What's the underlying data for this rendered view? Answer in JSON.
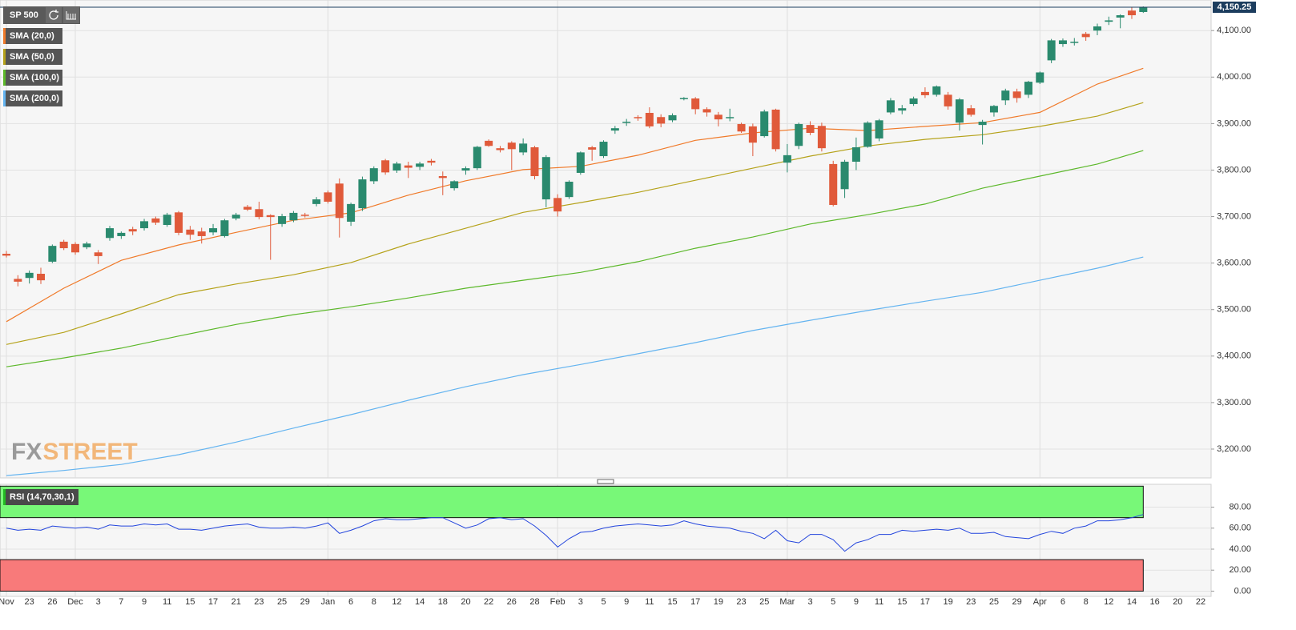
{
  "chart_data": [
    {
      "type": "candlestick",
      "title": "SP 500",
      "legend": "top-left",
      "grid": true,
      "up_color": "#2a8a6e",
      "down_color": "#e05a3a",
      "categories": [
        "Nov",
        null,
        "23",
        null,
        "26",
        null,
        "Dec",
        null,
        "3",
        null,
        "7",
        null,
        "9",
        null,
        "11",
        null,
        "15",
        null,
        "17",
        null,
        "21",
        null,
        "23",
        null,
        "25",
        null,
        "29",
        null,
        "Jan",
        null,
        "6",
        null,
        "8",
        null,
        "12",
        null,
        "14",
        null,
        "18",
        null,
        "20",
        null,
        "22",
        null,
        "26",
        null,
        "28",
        null,
        "Feb",
        null,
        "3",
        null,
        "5",
        null,
        "9",
        null,
        "11",
        null,
        "15",
        null,
        "17",
        null,
        "19",
        null,
        "23",
        null,
        "25",
        null,
        "Mar",
        null,
        "3",
        null,
        "5",
        null,
        "9",
        null,
        "11",
        null,
        "15",
        null,
        "17",
        null,
        "19",
        null,
        "23",
        null,
        "25",
        null,
        "29",
        null,
        "Apr",
        null,
        "6",
        null,
        "8",
        null,
        "12",
        null,
        "14",
        null,
        "16",
        null,
        "20",
        null,
        "22"
      ],
      "open": [
        3620,
        3566,
        3568,
        3577,
        3603,
        3646,
        3641,
        3634,
        3623,
        3654,
        3658,
        3673,
        3675,
        3696,
        3682,
        3709,
        3672,
        3668,
        3666,
        3658,
        3696,
        3721,
        3716,
        3703,
        3684,
        3692,
        3704,
        3727,
        3752,
        3771,
        3689,
        3718,
        3776,
        3821,
        3799,
        3810,
        3807,
        3820,
        3787,
        3761,
        3799,
        3804,
        3863,
        3847,
        3859,
        3838,
        3849,
        3737,
        3740,
        3742,
        3794,
        3849,
        3830,
        3885,
        3902,
        3914,
        3923,
        3914,
        3907,
        3953,
        3954,
        3931,
        3919,
        3912,
        3899,
        3894,
        3873,
        3930,
        3816,
        3852,
        3897,
        3895,
        3813,
        3759,
        3818,
        3850,
        3868,
        3924,
        3928,
        3942,
        3968,
        3962,
        3962,
        3902,
        3933,
        3897,
        3924,
        3950,
        3969,
        3962,
        3988,
        4036,
        4071,
        4074,
        4093,
        4100,
        4119,
        4128,
        4143,
        4140,
        null,
        null,
        null,
        null,
        null
      ],
      "high": [
        3626,
        3574,
        3584,
        3590,
        3640,
        3650,
        3645,
        3646,
        3628,
        3680,
        3668,
        3678,
        3695,
        3700,
        3708,
        3712,
        3680,
        3676,
        3684,
        3695,
        3708,
        3725,
        3732,
        3705,
        3706,
        3712,
        3708,
        3742,
        3756,
        3782,
        3730,
        3786,
        3808,
        3824,
        3818,
        3818,
        3818,
        3824,
        3797,
        3778,
        3808,
        3852,
        3866,
        3852,
        3862,
        3868,
        3852,
        3832,
        3748,
        3778,
        3840,
        3852,
        3864,
        3895,
        3910,
        3918,
        3935,
        3920,
        3922,
        3957,
        3957,
        3935,
        3925,
        3932,
        3902,
        3900,
        3930,
        3932,
        3856,
        3902,
        3905,
        3902,
        3820,
        3822,
        3870,
        3905,
        3910,
        3955,
        3940,
        3958,
        3978,
        3982,
        3968,
        3955,
        3940,
        3908,
        3940,
        3975,
        3975,
        3992,
        4012,
        4082,
        4083,
        4084,
        4097,
        4115,
        4130,
        4135,
        4150,
        4152,
        null,
        null,
        null,
        null,
        null
      ],
      "low": [
        3612,
        3550,
        3556,
        3555,
        3600,
        3628,
        3618,
        3630,
        3598,
        3648,
        3652,
        3660,
        3670,
        3682,
        3678,
        3660,
        3650,
        3642,
        3660,
        3655,
        3692,
        3712,
        3694,
        3607,
        3678,
        3688,
        3698,
        3722,
        3728,
        3655,
        3680,
        3712,
        3770,
        3790,
        3794,
        3783,
        3800,
        3810,
        3746,
        3756,
        3790,
        3800,
        3850,
        3838,
        3800,
        3832,
        3780,
        3720,
        3700,
        3738,
        3790,
        3820,
        3826,
        3878,
        3895,
        3906,
        3890,
        3892,
        3903,
        3950,
        3920,
        3915,
        3894,
        3905,
        3880,
        3830,
        3870,
        3840,
        3795,
        3845,
        3875,
        3840,
        3722,
        3740,
        3800,
        3848,
        3862,
        3920,
        3920,
        3938,
        3955,
        3958,
        3930,
        3885,
        3915,
        3855,
        3915,
        3940,
        3945,
        3955,
        3985,
        4030,
        4065,
        4068,
        4078,
        4090,
        4112,
        4105,
        4125,
        4138,
        null,
        null,
        null,
        null,
        null
      ],
      "close": [
        3616,
        3560,
        3579,
        3563,
        3637,
        3632,
        3623,
        3642,
        3615,
        3675,
        3665,
        3668,
        3690,
        3687,
        3704,
        3665,
        3661,
        3658,
        3675,
        3692,
        3704,
        3715,
        3699,
        3699,
        3701,
        3708,
        3702,
        3737,
        3732,
        3697,
        3727,
        3780,
        3804,
        3795,
        3814,
        3805,
        3814,
        3816,
        3783,
        3776,
        3804,
        3850,
        3852,
        3843,
        3845,
        3857,
        3787,
        3828,
        3711,
        3775,
        3838,
        3844,
        3861,
        3890,
        3904,
        3912,
        3894,
        3900,
        3918,
        3955,
        3931,
        3924,
        3909,
        3914,
        3883,
        3859,
        3926,
        3845,
        3832,
        3899,
        3880,
        3847,
        3725,
        3818,
        3849,
        3902,
        3907,
        3950,
        3933,
        3954,
        3961,
        3980,
        3937,
        3952,
        3919,
        3904,
        3938,
        3971,
        3955,
        3990,
        4010,
        4079,
        4079,
        4076,
        4086,
        4109,
        4122,
        4133,
        4133,
        4150.25,
        null,
        null,
        null,
        null,
        null
      ],
      "series": [
        {
          "name": "SMA (20,0)",
          "color": "#f07a2a",
          "x": [
            0,
            5,
            10,
            15,
            20,
            25,
            30,
            35,
            40,
            45,
            50,
            55,
            60,
            65,
            70,
            75,
            80,
            85,
            90,
            95,
            99
          ],
          "values": [
            3474,
            3546,
            3606,
            3639,
            3666,
            3692,
            3708,
            3746,
            3777,
            3801,
            3808,
            3832,
            3864,
            3880,
            3890,
            3885,
            3894,
            3902,
            3924,
            3985,
            4019
          ]
        },
        {
          "name": "SMA (50,0)",
          "color": "#b5a21a",
          "x": [
            0,
            5,
            10,
            15,
            20,
            25,
            30,
            35,
            40,
            45,
            50,
            55,
            60,
            65,
            70,
            75,
            80,
            85,
            90,
            95,
            99
          ],
          "values": [
            3425,
            3451,
            3491,
            3532,
            3555,
            3575,
            3601,
            3641,
            3675,
            3709,
            3730,
            3752,
            3778,
            3804,
            3830,
            3852,
            3866,
            3876,
            3894,
            3916,
            3945
          ]
        },
        {
          "name": "SMA (100,0)",
          "color": "#5cb82a",
          "x": [
            0,
            5,
            10,
            15,
            20,
            25,
            30,
            35,
            40,
            45,
            50,
            55,
            60,
            65,
            70,
            75,
            80,
            85,
            90,
            95,
            99
          ],
          "values": [
            3377,
            3396,
            3417,
            3443,
            3468,
            3489,
            3506,
            3525,
            3546,
            3563,
            3580,
            3603,
            3632,
            3656,
            3684,
            3704,
            3727,
            3761,
            3787,
            3813,
            3842
          ]
        },
        {
          "name": "SMA (200,0)",
          "color": "#64b4f0",
          "x": [
            0,
            5,
            10,
            15,
            20,
            25,
            30,
            35,
            40,
            45,
            50,
            55,
            60,
            65,
            70,
            75,
            80,
            85,
            90,
            95,
            99
          ],
          "values": [
            3143,
            3154,
            3167,
            3188,
            3215,
            3245,
            3274,
            3305,
            3334,
            3360,
            3382,
            3405,
            3429,
            3455,
            3477,
            3498,
            3518,
            3537,
            3563,
            3589,
            3613
          ]
        }
      ],
      "ylim": [
        3138,
        4152
      ],
      "yticks": [
        {
          "value": 3200,
          "label": "3,200.00"
        },
        {
          "value": 3300,
          "label": "3,300.00"
        },
        {
          "value": 3400,
          "label": "3,400.00"
        },
        {
          "value": 3500,
          "label": "3,500.00"
        },
        {
          "value": 3600,
          "label": "3,600.00"
        },
        {
          "value": 3700,
          "label": "3,700.00"
        },
        {
          "value": 3800,
          "label": "3,800.00"
        },
        {
          "value": 3900,
          "label": "3,900.00"
        },
        {
          "value": 4000,
          "label": "4,000.00"
        },
        {
          "value": 4100,
          "label": "4,100.00"
        }
      ],
      "price_tag": {
        "value": 4150.25,
        "label": "4,150.25"
      },
      "watermark": [
        "FX",
        "STREET"
      ]
    },
    {
      "type": "line",
      "title": "RSI (14,70,30,1)",
      "color": "#2244dd",
      "values": [
        60,
        58,
        59,
        58,
        62,
        61,
        60,
        61,
        59,
        63,
        62,
        62,
        64,
        63,
        64,
        59,
        59,
        58,
        60,
        62,
        63,
        64,
        61,
        60,
        60,
        61,
        60,
        62,
        65,
        55,
        58,
        62,
        67,
        69,
        68,
        68,
        69,
        70,
        70,
        65,
        60,
        63,
        69,
        70,
        68,
        69,
        62,
        53,
        42,
        50,
        56,
        57,
        60,
        62,
        63,
        64,
        63,
        62,
        63,
        67,
        64,
        62,
        61,
        60,
        57,
        55,
        50,
        58,
        48,
        46,
        54,
        54,
        49,
        38,
        46,
        49,
        54,
        54,
        58,
        57,
        58,
        59,
        58,
        60,
        55,
        55,
        56,
        52,
        51,
        50,
        54,
        57,
        55,
        60,
        62,
        67,
        67,
        68,
        70,
        73,
        null,
        null,
        null,
        null,
        null
      ],
      "zones": [
        {
          "from": 70,
          "to": 100,
          "color": "#78f878"
        },
        {
          "from": 0,
          "to": 30,
          "color": "#f87a7a"
        }
      ],
      "ylim": [
        -5,
        101
      ],
      "yticks": [
        {
          "value": 0,
          "label": "0.00"
        },
        {
          "value": 20,
          "label": "20.00"
        },
        {
          "value": 40,
          "label": "40.00"
        },
        {
          "value": 60,
          "label": "60.00"
        },
        {
          "value": 80,
          "label": "80.00"
        }
      ]
    }
  ]
}
